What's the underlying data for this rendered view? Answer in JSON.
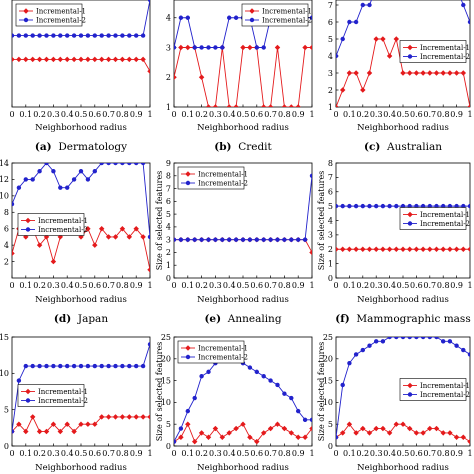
{
  "figure": {
    "background": "#ffffff"
  },
  "chart_data": [
    {
      "type": "line",
      "caption": {
        "letter": "(a)",
        "text": "Dermatology"
      },
      "xlabel": "Neighborhood radius",
      "ylabel": "Size of selected features",
      "x": [
        0,
        0.05,
        0.1,
        0.15,
        0.2,
        0.25,
        0.3,
        0.35,
        0.4,
        0.45,
        0.5,
        0.55,
        0.6,
        0.65,
        0.7,
        0.75,
        0.8,
        0.85,
        0.9,
        0.95,
        1
      ],
      "xticks": [
        "0",
        "0.1",
        "0.2",
        "0.3",
        "0.4",
        "0.5",
        "0.6",
        "0.7",
        "0.8",
        "0.9",
        "1"
      ],
      "xlim": [
        0,
        1
      ],
      "ylim": [
        0,
        10
      ],
      "yticks": [],
      "legend_position": "top-left",
      "series": [
        {
          "name": "Incremental-1",
          "color": "#e41a1c",
          "marker": "diamond",
          "values": [
            4,
            4,
            4,
            4,
            4,
            4,
            4,
            4,
            4,
            4,
            4,
            4,
            4,
            4,
            4,
            4,
            4,
            4,
            4,
            4,
            3
          ]
        },
        {
          "name": "Incremental-2",
          "color": "#2222cc",
          "marker": "circle",
          "values": [
            6,
            6,
            6,
            6,
            6,
            6,
            6,
            6,
            6,
            6,
            6,
            6,
            6,
            6,
            6,
            6,
            6,
            6,
            6,
            6,
            9
          ]
        }
      ]
    },
    {
      "type": "line",
      "caption": {
        "letter": "(b)",
        "text": "Credit"
      },
      "xlabel": "Neighborhood radius",
      "ylabel": "",
      "x": [
        0,
        0.05,
        0.1,
        0.15,
        0.2,
        0.25,
        0.3,
        0.35,
        0.4,
        0.45,
        0.5,
        0.55,
        0.6,
        0.65,
        0.7,
        0.75,
        0.8,
        0.85,
        0.9,
        0.95,
        1
      ],
      "xticks": [
        "0",
        "0.1",
        "0.2",
        "0.3",
        "0.4",
        "0.5",
        "0.6",
        "0.7",
        "0.8",
        "0.9",
        "1"
      ],
      "xlim": [
        0,
        1
      ],
      "ylim": [
        1,
        5
      ],
      "yticks": [
        "1",
        "2",
        "3",
        "4"
      ],
      "legend_position": "top-right",
      "series": [
        {
          "name": "Incremental-1",
          "color": "#e41a1c",
          "marker": "diamond",
          "values": [
            2,
            3,
            3,
            3,
            2,
            1,
            1,
            3,
            1,
            1,
            3,
            3,
            3,
            1,
            1,
            3,
            1,
            1,
            1,
            3,
            3
          ]
        },
        {
          "name": "Incremental-2",
          "color": "#2222cc",
          "marker": "circle",
          "values": [
            3,
            4,
            4,
            3,
            3,
            3,
            3,
            3,
            4,
            4,
            4,
            4,
            3,
            3,
            4,
            4,
            4,
            4,
            4,
            4,
            4
          ]
        }
      ]
    },
    {
      "type": "line",
      "caption": {
        "letter": "(c)",
        "text": "Australian"
      },
      "xlabel": "Neighborhood radius",
      "ylabel": "",
      "x": [
        0,
        0.05,
        0.1,
        0.15,
        0.2,
        0.25,
        0.3,
        0.35,
        0.4,
        0.45,
        0.5,
        0.55,
        0.6,
        0.65,
        0.7,
        0.75,
        0.8,
        0.85,
        0.9,
        0.95,
        1
      ],
      "xticks": [
        "0",
        "0.1",
        "0.2",
        "0.3",
        "0.4",
        "0.5",
        "0.6",
        "0.7",
        "0.8",
        "0.9",
        "1"
      ],
      "xlim": [
        0,
        1
      ],
      "ylim": [
        1,
        8
      ],
      "yticks": [
        "1",
        "2",
        "3",
        "4",
        "5",
        "6",
        "7",
        "8"
      ],
      "legend_position": "center-right",
      "series": [
        {
          "name": "Incremental-1",
          "color": "#e41a1c",
          "marker": "diamond",
          "values": [
            1,
            2,
            3,
            3,
            2,
            3,
            5,
            5,
            4,
            5,
            3,
            3,
            3,
            3,
            3,
            3,
            3,
            3,
            3,
            3,
            1
          ]
        },
        {
          "name": "Incremental-2",
          "color": "#2222cc",
          "marker": "circle",
          "values": [
            4,
            5,
            6,
            6,
            7,
            7,
            8,
            8,
            8,
            8,
            8,
            8,
            8,
            8,
            8,
            8,
            8,
            8,
            8,
            7,
            6
          ]
        }
      ]
    },
    {
      "type": "line",
      "caption": {
        "letter": "(d)",
        "text": "Japan"
      },
      "xlabel": "Neighborhood radius",
      "ylabel": "",
      "x": [
        0,
        0.05,
        0.1,
        0.15,
        0.2,
        0.25,
        0.3,
        0.35,
        0.4,
        0.45,
        0.5,
        0.55,
        0.6,
        0.65,
        0.7,
        0.75,
        0.8,
        0.85,
        0.9,
        0.95,
        1
      ],
      "xticks": [
        "0",
        "0.1",
        "0.2",
        "0.3",
        "0.4",
        "0.5",
        "0.6",
        "0.7",
        "0.8",
        "0.9",
        "1"
      ],
      "xlim": [
        0,
        1
      ],
      "ylim": [
        0,
        14
      ],
      "yticks": [
        "2",
        "4",
        "6",
        "8",
        "10",
        "12",
        "14"
      ],
      "legend_position": "center-left",
      "series": [
        {
          "name": "Incremental-1",
          "color": "#e41a1c",
          "marker": "diamond",
          "values": [
            3,
            6,
            5,
            6,
            4,
            5,
            2,
            5,
            6,
            7,
            5,
            6,
            4,
            6,
            5,
            5,
            6,
            5,
            6,
            5,
            1
          ]
        },
        {
          "name": "Incremental-2",
          "color": "#2222cc",
          "marker": "circle",
          "values": [
            9,
            11,
            12,
            12,
            13,
            14,
            13,
            11,
            11,
            12,
            13,
            12,
            13,
            14,
            14,
            14,
            14,
            14,
            14,
            14,
            5
          ]
        }
      ]
    },
    {
      "type": "line",
      "caption": {
        "letter": "(e)",
        "text": "Annealing"
      },
      "xlabel": "Neighborhood radius",
      "ylabel": "Size of selected features",
      "x": [
        0,
        0.05,
        0.1,
        0.15,
        0.2,
        0.25,
        0.3,
        0.35,
        0.4,
        0.45,
        0.5,
        0.55,
        0.6,
        0.65,
        0.7,
        0.75,
        0.8,
        0.85,
        0.9,
        0.95,
        1
      ],
      "xticks": [
        "0",
        "0.1",
        "0.2",
        "0.3",
        "0.4",
        "0.5",
        "0.6",
        "0.7",
        "0.8",
        "0.9",
        "1"
      ],
      "xlim": [
        0,
        1
      ],
      "ylim": [
        0,
        9
      ],
      "yticks": [
        "0",
        "1",
        "2",
        "3",
        "4",
        "5",
        "6",
        "7",
        "8",
        "9"
      ],
      "legend_position": "top-left",
      "series": [
        {
          "name": "Incremental-1",
          "color": "#e41a1c",
          "marker": "diamond",
          "values": [
            3,
            3,
            3,
            3,
            3,
            3,
            3,
            3,
            3,
            3,
            3,
            3,
            3,
            3,
            3,
            3,
            3,
            3,
            3,
            3,
            2
          ]
        },
        {
          "name": "Incremental-2",
          "color": "#2222cc",
          "marker": "circle",
          "values": [
            3,
            3,
            3,
            3,
            3,
            3,
            3,
            3,
            3,
            3,
            3,
            3,
            3,
            3,
            3,
            3,
            3,
            3,
            3,
            3,
            8
          ]
        }
      ]
    },
    {
      "type": "line",
      "caption": {
        "letter": "(f)",
        "text": "Mammographic mass"
      },
      "xlabel": "Neighborhood radius",
      "ylabel": "Size of selected features",
      "x": [
        0,
        0.05,
        0.1,
        0.15,
        0.2,
        0.25,
        0.3,
        0.35,
        0.4,
        0.45,
        0.5,
        0.55,
        0.6,
        0.65,
        0.7,
        0.75,
        0.8,
        0.85,
        0.9,
        0.95,
        1
      ],
      "xticks": [
        "0",
        "0.1",
        "0.2",
        "0.3",
        "0.4",
        "0.5",
        "0.6",
        "0.7",
        "0.8",
        "0.9",
        "1"
      ],
      "xlim": [
        0,
        1
      ],
      "ylim": [
        0,
        8
      ],
      "yticks": [
        "0",
        "1",
        "2",
        "3",
        "4",
        "5",
        "6",
        "7",
        "8"
      ],
      "legend_position": "center-right",
      "series": [
        {
          "name": "Incremental-1",
          "color": "#e41a1c",
          "marker": "diamond",
          "values": [
            2,
            2,
            2,
            2,
            2,
            2,
            2,
            2,
            2,
            2,
            2,
            2,
            2,
            2,
            2,
            2,
            2,
            2,
            2,
            2,
            2
          ]
        },
        {
          "name": "Incremental-2",
          "color": "#2222cc",
          "marker": "circle",
          "values": [
            5,
            5,
            5,
            5,
            5,
            5,
            5,
            5,
            5,
            5,
            5,
            5,
            5,
            5,
            5,
            5,
            5,
            5,
            5,
            5,
            5
          ]
        }
      ]
    },
    {
      "type": "line",
      "caption": {
        "letter": "",
        "text": ""
      },
      "xlabel": "Neighborhood radius",
      "ylabel": "Size of selected features",
      "x": [
        0,
        0.05,
        0.1,
        0.15,
        0.2,
        0.25,
        0.3,
        0.35,
        0.4,
        0.45,
        0.5,
        0.55,
        0.6,
        0.65,
        0.7,
        0.75,
        0.8,
        0.85,
        0.9,
        0.95,
        1
      ],
      "xticks": [
        "0",
        "0.1",
        "0.2",
        "0.3",
        "0.4",
        "0.5",
        "0.6",
        "0.7",
        "0.8",
        "0.9",
        "1"
      ],
      "xlim": [
        0,
        1
      ],
      "ylim": [
        0,
        15
      ],
      "yticks": [
        "0",
        "5",
        "10",
        "15"
      ],
      "legend_position": "center-left",
      "series": [
        {
          "name": "Incremental-1",
          "color": "#e41a1c",
          "marker": "diamond",
          "values": [
            2,
            3,
            2,
            4,
            2,
            2,
            3,
            2,
            3,
            2,
            3,
            3,
            3,
            4,
            4,
            4,
            4,
            4,
            4,
            4,
            4
          ]
        },
        {
          "name": "Incremental-2",
          "color": "#2222cc",
          "marker": "circle",
          "values": [
            2,
            9,
            11,
            11,
            11,
            11,
            11,
            11,
            11,
            11,
            11,
            11,
            11,
            11,
            11,
            11,
            11,
            11,
            11,
            11,
            14
          ]
        }
      ]
    },
    {
      "type": "line",
      "caption": {
        "letter": "",
        "text": ""
      },
      "xlabel": "Neighborhood radius",
      "ylabel": "Size of selected features",
      "x": [
        0,
        0.05,
        0.1,
        0.15,
        0.2,
        0.25,
        0.3,
        0.35,
        0.4,
        0.45,
        0.5,
        0.55,
        0.6,
        0.65,
        0.7,
        0.75,
        0.8,
        0.85,
        0.9,
        0.95,
        1
      ],
      "xticks": [
        "0",
        "0.1",
        "0.2",
        "0.3",
        "0.4",
        "0.5",
        "0.6",
        "0.7",
        "0.8",
        "0.9",
        "1"
      ],
      "xlim": [
        0,
        1
      ],
      "ylim": [
        0,
        25
      ],
      "yticks": [
        "0",
        "5",
        "10",
        "15",
        "20",
        "25"
      ],
      "legend_position": "top-left",
      "series": [
        {
          "name": "Incremental-1",
          "color": "#e41a1c",
          "marker": "diamond",
          "values": [
            1,
            2,
            5,
            1,
            3,
            2,
            4,
            2,
            3,
            4,
            5,
            2,
            1,
            3,
            4,
            5,
            4,
            3,
            2,
            2,
            4
          ]
        },
        {
          "name": "Incremental-2",
          "color": "#2222cc",
          "marker": "circle",
          "values": [
            1,
            4,
            8,
            11,
            16,
            17,
            19,
            20,
            21,
            21,
            19,
            18,
            17,
            16,
            15,
            14,
            12,
            11,
            8,
            6,
            6
          ]
        }
      ]
    },
    {
      "type": "line",
      "caption": {
        "letter": "",
        "text": ""
      },
      "xlabel": "Neighborhood radius",
      "ylabel": "Size of selected features",
      "x": [
        0,
        0.05,
        0.1,
        0.15,
        0.2,
        0.25,
        0.3,
        0.35,
        0.4,
        0.45,
        0.5,
        0.55,
        0.6,
        0.65,
        0.7,
        0.75,
        0.8,
        0.85,
        0.9,
        0.95,
        1
      ],
      "xticks": [
        "0",
        "0.1",
        "0.2",
        "0.3",
        "0.4",
        "0.5",
        "0.6",
        "0.7",
        "0.8",
        "0.9",
        "1"
      ],
      "xlim": [
        0,
        1
      ],
      "ylim": [
        0,
        25
      ],
      "yticks": [
        "0",
        "5",
        "10",
        "15",
        "20",
        "25"
      ],
      "legend_position": "center-right",
      "series": [
        {
          "name": "Incremental-1",
          "color": "#e41a1c",
          "marker": "diamond",
          "values": [
            2,
            3,
            5,
            3,
            4,
            3,
            4,
            4,
            3,
            5,
            5,
            4,
            3,
            3,
            4,
            4,
            3,
            3,
            2,
            2,
            1
          ]
        },
        {
          "name": "Incremental-2",
          "color": "#2222cc",
          "marker": "circle",
          "values": [
            2,
            14,
            19,
            21,
            22,
            23,
            24,
            24,
            25,
            25,
            25,
            25,
            25,
            25,
            25,
            25,
            24,
            24,
            23,
            22,
            21
          ]
        }
      ]
    }
  ]
}
